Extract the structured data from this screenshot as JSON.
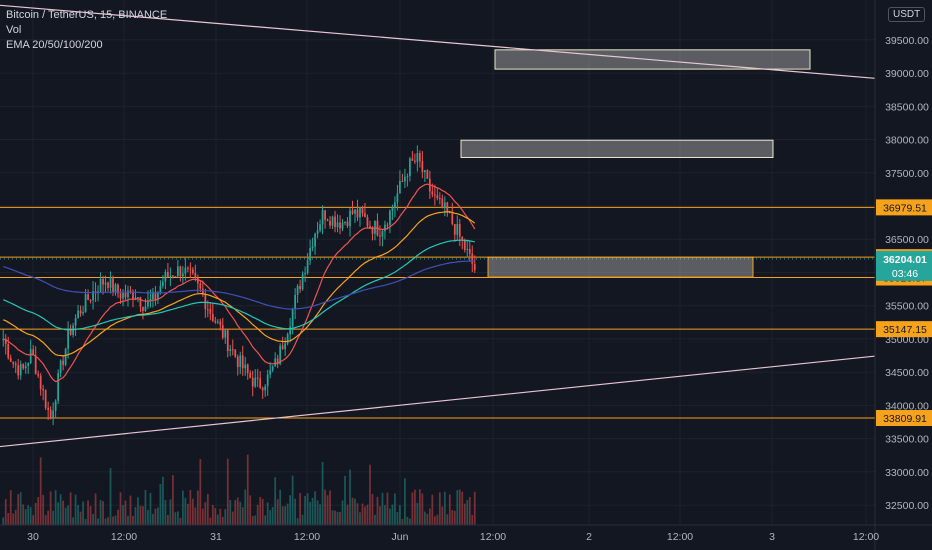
{
  "legend": {
    "symbol": "Bitcoin / TetherUS, 15, BINANCE",
    "vol": "Vol",
    "ema": "EMA 20/50/100/200"
  },
  "currency_badge": "USDT",
  "colors": {
    "background": "#131722",
    "up": "#26a69a",
    "down": "#ef5350",
    "level_line": "#f7a21b",
    "trendline": "#e8c7d0",
    "ema20": "#ef5350",
    "ema50": "#f7a21b",
    "ema100": "#26c6b7",
    "ema200": "#3f51b5",
    "current_price": "#26a69a"
  },
  "chart_data": {
    "type": "candlestick",
    "x_ticks": [
      "30",
      "12:00",
      "31",
      "12:00",
      "Jun",
      "12:00",
      "2",
      "12:00",
      "3",
      "12:00"
    ],
    "y_ticks": [
      32500,
      33000,
      33500,
      34000,
      34500,
      35000,
      35500,
      36000,
      36500,
      37000,
      37500,
      38000,
      38500,
      39000,
      39500
    ],
    "ylim": [
      32200,
      40100
    ],
    "levels": [
      {
        "label": "36979.51",
        "value": 36979.51
      },
      {
        "label": "36230.58",
        "value": 36230.58
      },
      {
        "label": "35923.87",
        "value": 35923.87
      },
      {
        "label": "35147.15",
        "value": 35147.15
      },
      {
        "label": "33809.91",
        "value": 33809.91
      }
    ],
    "current_price": {
      "label": "36204.01",
      "countdown": "03:46",
      "value": 36204.01
    },
    "close_path": [
      35000,
      34650,
      34500,
      34800,
      34300,
      33800,
      34500,
      35100,
      35400,
      35600,
      35800,
      35900,
      35700,
      35650,
      35700,
      35500,
      35600,
      35900,
      36000,
      36050,
      35900,
      35700,
      35400,
      35150,
      34900,
      34650,
      34450,
      34300,
      34400,
      34650,
      35100,
      35600,
      36100,
      36600,
      36900,
      36800,
      36750,
      36900,
      36850,
      36700,
      36650,
      36900,
      37250,
      37600,
      37700,
      37300,
      37050,
      36900,
      36650,
      36350,
      36050
    ]
  },
  "zones": [
    {
      "from_x": "Jun 11:30",
      "to_x": "3 09:45",
      "low": 39060,
      "high": 39350
    },
    {
      "from_x": "Jun 06:00",
      "to_x": "2 20:45",
      "low": 37730,
      "high": 37990
    },
    {
      "from_x": "Jun 07:00",
      "to_x": "2 21:00",
      "low": 35930,
      "high": 36230
    }
  ],
  "trendlines": [
    {
      "from": [
        0,
        40020
      ],
      "to": [
        932,
        38850
      ]
    },
    {
      "from": [
        0,
        33380
      ],
      "to": [
        932,
        34830
      ]
    }
  ]
}
